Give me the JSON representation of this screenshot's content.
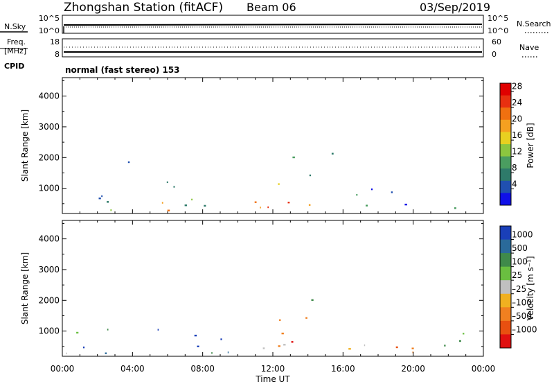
{
  "header": {
    "station": "Zhongshan Station (fitACF)",
    "beam": "Beam 06",
    "date": "03/Sep/2019"
  },
  "meta_panels": {
    "nsky_label": "N.Sky",
    "nsky_ticks": [
      "10^5",
      "10^0"
    ],
    "nsearch_label": "N.Search",
    "freq_label": "Freq.",
    "freq_unit": "[MHz]",
    "freq_ticks": [
      "18",
      "8"
    ],
    "nave_label": "Nave",
    "nave_ticks": [
      "60",
      "0"
    ],
    "cpid_label": "CPID",
    "cpid_text": "normal (fast stereo) 153"
  },
  "chart_data": [
    {
      "type": "heatmap",
      "name": "power",
      "ylabel": "Slant Range [km]",
      "yticks": [
        "1000",
        "2000",
        "3000",
        "4000"
      ],
      "ylim": [
        180,
        4600
      ],
      "xlabel": "Time UT",
      "xticks": [
        "00:00",
        "04:00",
        "08:00",
        "12:00",
        "16:00",
        "20:00",
        "00:00"
      ],
      "xlim": [
        0,
        24
      ],
      "colorbar": {
        "label": "Power [dB]",
        "ticks": [
          "4",
          "8",
          "12",
          "16",
          "20",
          "24",
          "28"
        ],
        "range": [
          0,
          30
        ],
        "colors": [
          "#1010e8",
          "#2050b0",
          "#2e7a6a",
          "#4a9d60",
          "#8cc63f",
          "#e8d020",
          "#f5a020",
          "#f07010",
          "#e83010",
          "#e00000"
        ]
      },
      "echo_regions": [
        {
          "t": [
            0.7,
            3.8
          ],
          "r": [
            250,
            1450
          ],
          "level": 0.45
        },
        {
          "t": [
            2.8,
            4.2
          ],
          "r": [
            1800,
            2400
          ],
          "level": 0.15
        },
        {
          "t": [
            5.0,
            10.6
          ],
          "r": [
            250,
            1200
          ],
          "level": 0.5
        },
        {
          "t": [
            10.8,
            14.2
          ],
          "r": [
            250,
            1400
          ],
          "level": 0.75
        },
        {
          "t": [
            12.2,
            15.6
          ],
          "r": [
            1400,
            2300
          ],
          "level": 0.3
        },
        {
          "t": [
            16.0,
            22.0
          ],
          "r": [
            250,
            1000
          ],
          "level": 0.3
        },
        {
          "t": [
            22.3,
            24.0
          ],
          "r": [
            300,
            1000
          ],
          "level": 0.25
        }
      ]
    },
    {
      "type": "heatmap",
      "name": "velocity",
      "ylabel": "Slant Range [km]",
      "yticks": [
        "1000",
        "2000",
        "3000",
        "4000"
      ],
      "ylim": [
        180,
        4600
      ],
      "xlabel": "Time UT",
      "xticks": [
        "00:00",
        "04:00",
        "08:00",
        "12:00",
        "16:00",
        "20:00",
        "00:00"
      ],
      "xlim": [
        0,
        24
      ],
      "colorbar": {
        "label": "Velocity [m s⁻¹]",
        "ticks": [
          "1000",
          "500",
          "100",
          "25",
          "–25",
          "–100",
          "–500",
          "–1000"
        ],
        "colors": [
          "#1a3fb8",
          "#2a6a9a",
          "#3f8a4a",
          "#6abf40",
          "#c0c0c0",
          "#f0b020",
          "#f08020",
          "#e85010",
          "#e01010"
        ]
      },
      "echo_regions": [
        {
          "t": [
            0.0,
            1.2
          ],
          "r": [
            250,
            1100
          ],
          "level": 0.75
        },
        {
          "t": [
            1.0,
            3.9
          ],
          "r": [
            250,
            1300
          ],
          "level": 0.3
        },
        {
          "t": [
            5.0,
            10.6
          ],
          "r": [
            250,
            1200
          ],
          "level": 0.35
        },
        {
          "t": [
            10.8,
            14.2
          ],
          "r": [
            250,
            1400
          ],
          "level": 0.75
        },
        {
          "t": [
            12.5,
            15.6
          ],
          "r": [
            1400,
            2000
          ],
          "level": 0.5
        },
        {
          "t": [
            16.0,
            22.0
          ],
          "r": [
            250,
            1000
          ],
          "level": 0.65
        },
        {
          "t": [
            22.3,
            24.0
          ],
          "r": [
            300,
            1000
          ],
          "level": 0.55
        }
      ]
    }
  ]
}
